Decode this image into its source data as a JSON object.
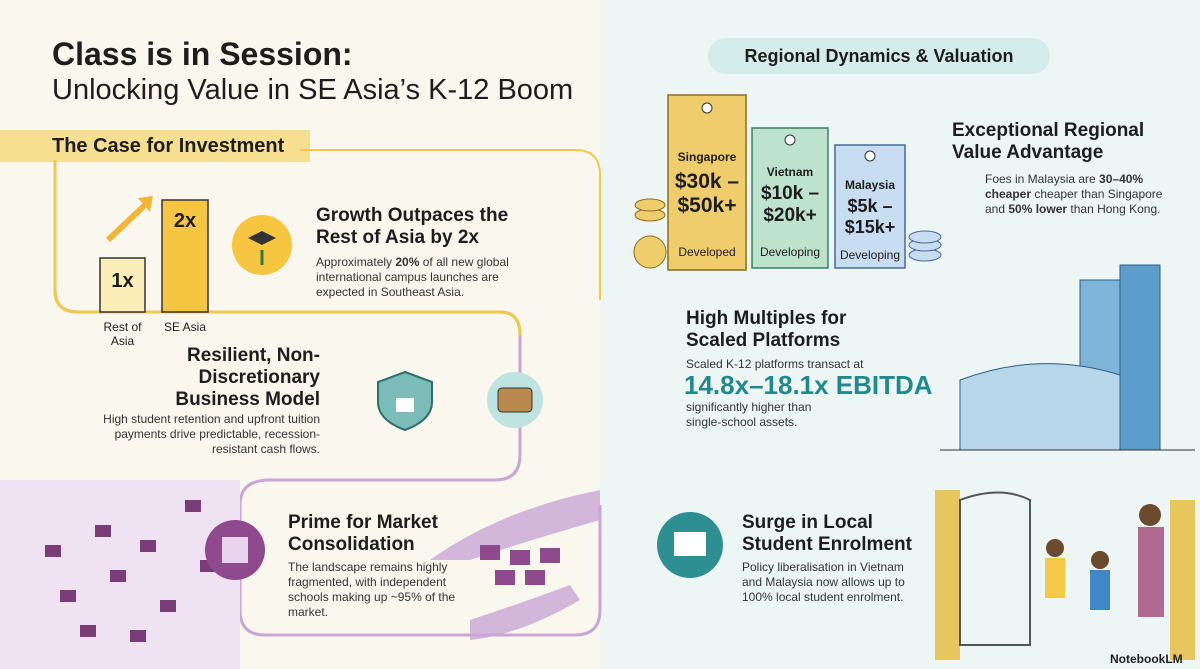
{
  "header": {
    "title": "Class is in Session:",
    "subtitle": "Unlocking Value in SE Asia’s K-12 Boom"
  },
  "left": {
    "heading": "The Case for Investment",
    "bars": {
      "labels": [
        "1x",
        "2x"
      ],
      "categories": [
        "Rest of Asia",
        "SE Asia"
      ]
    },
    "growth": {
      "heading": "Growth Outpaces the Rest of Asia by 2x",
      "body": [
        "Approximately ",
        "20%",
        " of all new global international campus launches are expected in Southeast Asia."
      ]
    },
    "resilient": {
      "heading": "Resilient, Non-Discretionary Business Model",
      "body": "High student retention and upfront tuition payments drive predictable, recession-resistant cash flows."
    },
    "consolidation": {
      "heading": "Prime for Market Consolidation",
      "body": "The landscape remains highly fragmented, with independent schools making up ~95% of the market."
    }
  },
  "right": {
    "heading": "Regional Dynamics & Valuation",
    "tags": [
      {
        "country": "Singapore",
        "fee": "$30k – $50k+",
        "status": "Developed"
      },
      {
        "country": "Vietnam",
        "fee": "$10k – $20k+",
        "status": "Developing"
      },
      {
        "country": "Malaysia",
        "fee": "$5k – $15k+",
        "status": "Developing"
      }
    ],
    "value": {
      "heading": "Exceptional Regional Value Advantage",
      "body": [
        "Foes in Malaysia are ",
        "30–40% cheaper",
        " cheaper than Singapore and ",
        "50% lower",
        " than Hong Kong."
      ]
    },
    "multiples": {
      "heading": "High Multiples for Scaled Platforms",
      "intro": "Scaled K-12 platforms transact at",
      "figure": "14.8x–18.1x EBITDA",
      "outro": "significantly higher than single-school assets."
    },
    "enrolment": {
      "heading": "Surge in Local Student Enrolment",
      "body": "Policy liberalisation in Vietnam and Malaysia now allows up to 100% local student enrolment."
    }
  },
  "footer": {
    "brand": "NotebookLM"
  }
}
